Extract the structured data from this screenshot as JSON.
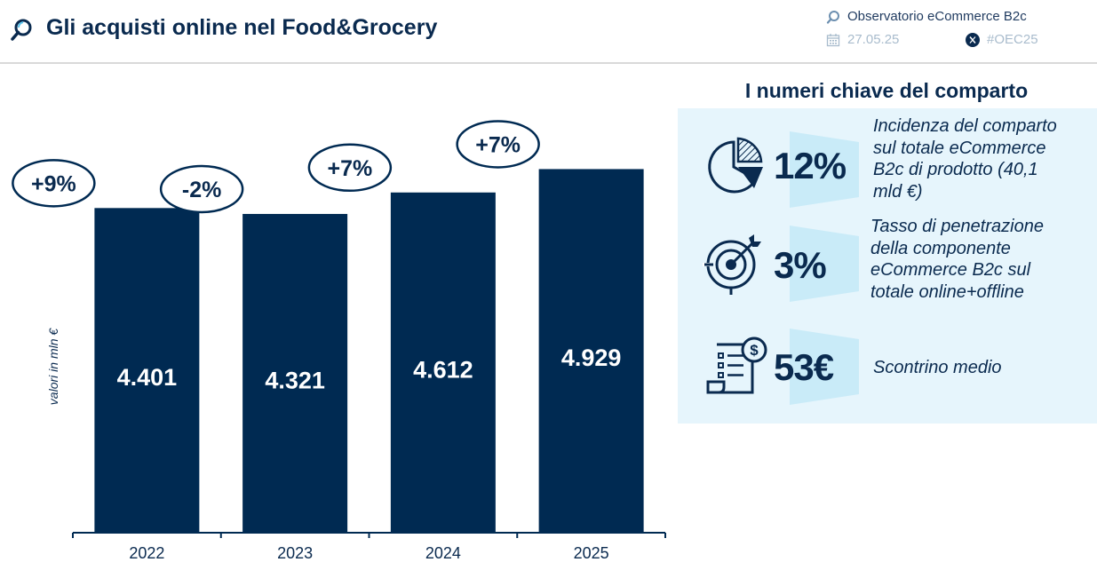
{
  "header": {
    "title": "Gli acquisti online nel Food&Grocery",
    "source": "Observatorio eCommerce B2c",
    "date": "27.05.25",
    "hashtag": "#OEC25"
  },
  "chart_data": {
    "type": "bar",
    "categories": [
      "2022",
      "2023",
      "2024",
      "2025"
    ],
    "values": [
      4401,
      4321,
      4612,
      4929
    ],
    "value_labels": [
      "4.401",
      "4.321",
      "4.612",
      "4.929"
    ],
    "growth_labels": [
      "+9%",
      "-2%",
      "+7%",
      "+7%"
    ],
    "title": "",
    "xlabel": "",
    "ylabel": "valori in mln €",
    "ylim": [
      0,
      5500
    ],
    "grid": false,
    "bar_color": "#002a52"
  },
  "panel": {
    "title": "I numeri chiave del comparto",
    "kpis": [
      {
        "icon": "pie-chart-icon",
        "value": "12%",
        "desc_lines": [
          "Incidenza del comparto",
          "sul totale eCommerce",
          "B2c di prodotto (40,1",
          "mld €)"
        ]
      },
      {
        "icon": "target-icon",
        "value": "3%",
        "desc_lines": [
          "Tasso di penetrazione",
          "della componente",
          "eCommerce B2c sul",
          "totale online+offline"
        ]
      },
      {
        "icon": "receipt-icon",
        "value": "53€",
        "desc_lines": [
          "Scontrino medio"
        ]
      }
    ]
  },
  "colors": {
    "navy": "#002a52",
    "panel_bg": "#e6f5fc",
    "chevron": "#c9ebf8"
  }
}
